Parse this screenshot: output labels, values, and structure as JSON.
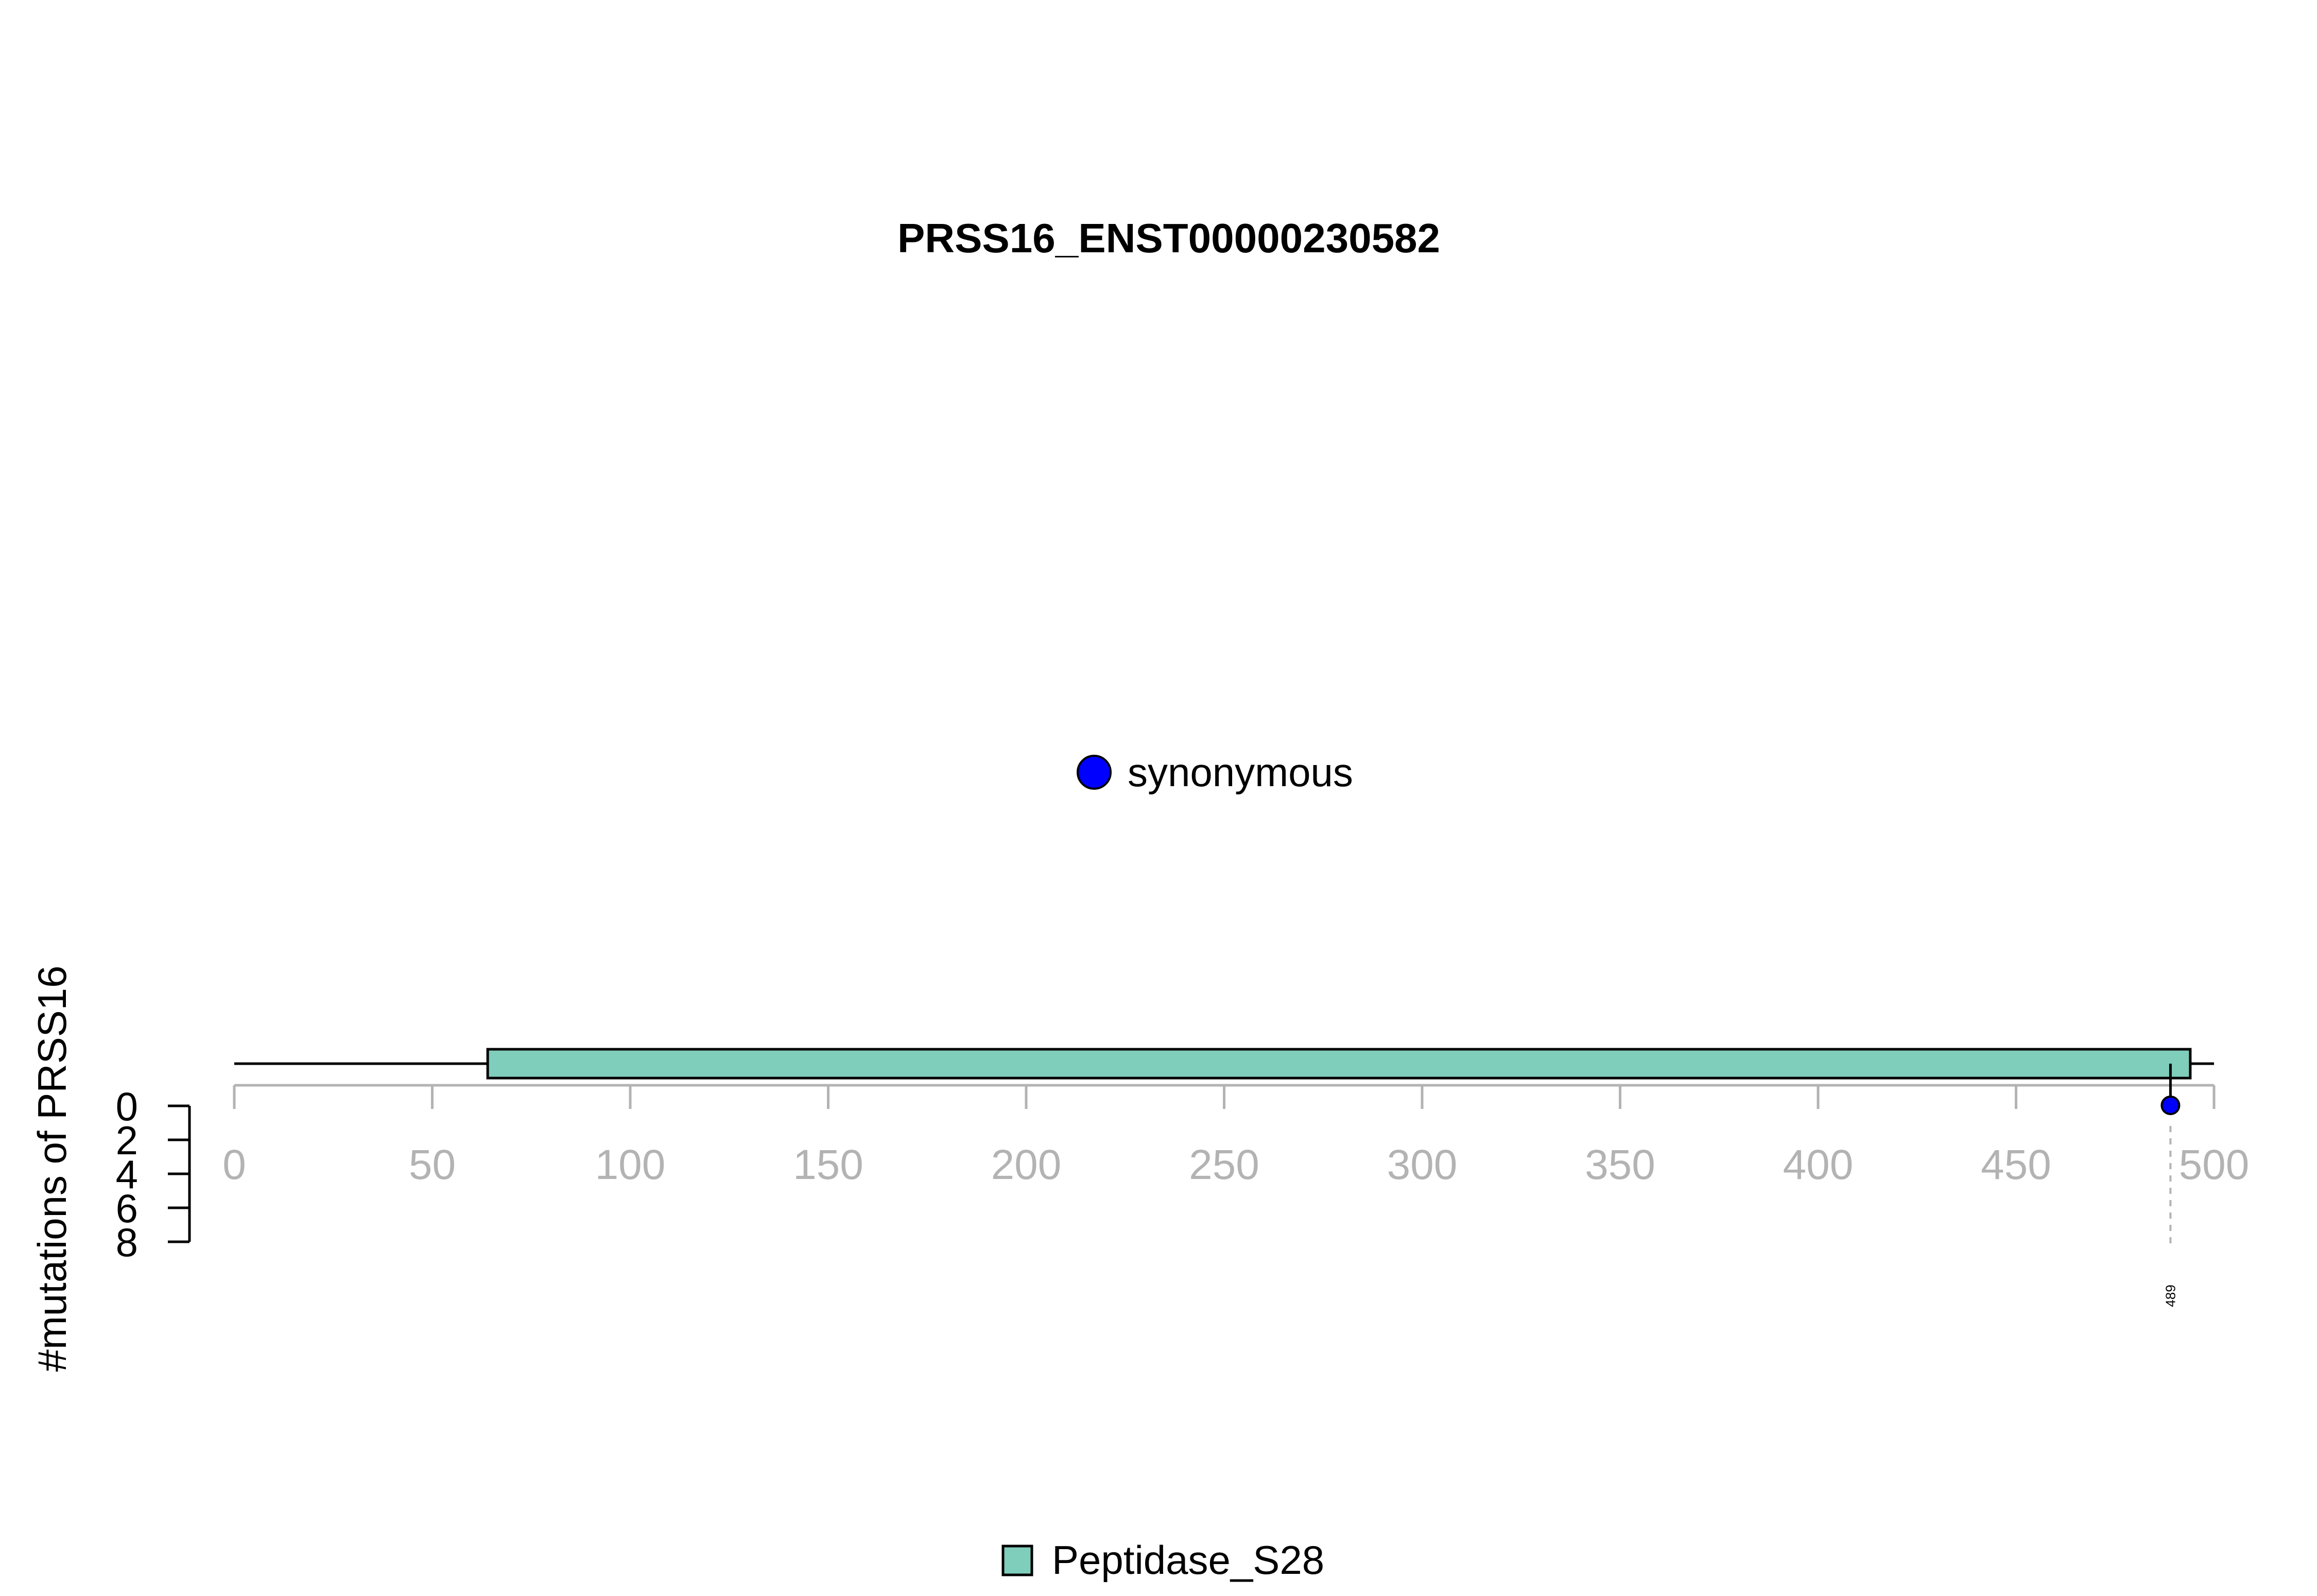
{
  "chart_data": {
    "type": "lollipop",
    "title": "PRSS16_ENST00000230582",
    "ylabel": "#mutations of PRSS16",
    "xlim": [
      0,
      500
    ],
    "x_ticks": [
      0,
      50,
      100,
      150,
      200,
      250,
      300,
      350,
      400,
      450,
      500
    ],
    "ylim": [
      0,
      8
    ],
    "y_ticks": [
      0,
      2,
      4,
      6,
      8
    ],
    "domains": [
      {
        "name": "Peptidase_S28",
        "start": 64,
        "end": 494,
        "color": "#7FCDBB"
      }
    ],
    "mutations": [
      {
        "position": 489,
        "count": 1,
        "label": "489",
        "type": "synonymous"
      }
    ],
    "mutation_legend": [
      {
        "label": "synonymous",
        "color": "#0000FF"
      }
    ],
    "domain_legend": [
      {
        "label": "Peptidase_S28",
        "color": "#7FCDBB"
      }
    ],
    "colors": {
      "axis_gray": "#B3B3B3",
      "outline": "#000000"
    }
  }
}
